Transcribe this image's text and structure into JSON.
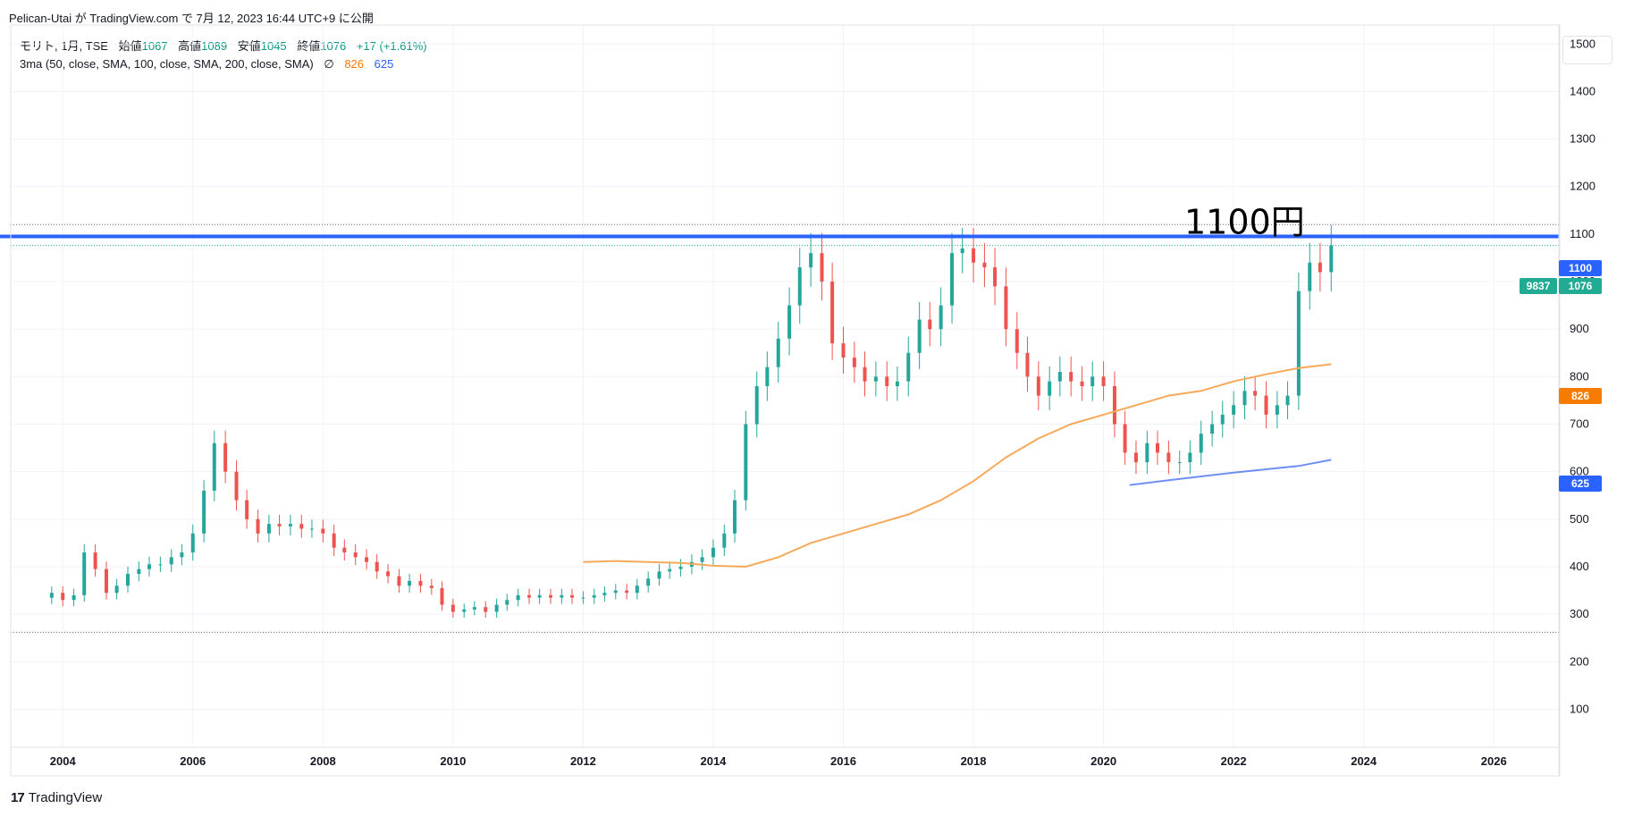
{
  "header": {
    "publish_text": "Pelican-Utai が TradingView.com で 7月 12, 2023 16:44 UTC+9 に公開"
  },
  "legend": {
    "symbol": "モリト, 1月, TSE",
    "open_label": "始値",
    "open_value": "1067",
    "high_label": "高値",
    "high_value": "1089",
    "low_label": "安値",
    "low_value": "1045",
    "close_label": "終値",
    "close_value": "1076",
    "change": "+17 (+1.61%)",
    "indicator": "3ma (50, close, SMA, 100, close, SMA, 200, close, SMA)",
    "indicator_icon": "∅",
    "ma1_value": "826",
    "ma2_value": "625"
  },
  "footer": {
    "logo_icon": "tradingview-logo-icon",
    "logo_text": "TradingView"
  },
  "colors": {
    "up": "#26a69a",
    "down": "#ef5350",
    "ma_orange": "#f7a95a",
    "ma_blue": "#6f8ff5",
    "hline": "#2962ff",
    "badge_orange": "#f57c00",
    "badge_teal": "#22ab94"
  },
  "chart_data": {
    "type": "candlestick",
    "title": "",
    "xlabel": "",
    "ylabel": "",
    "x_ticks": [
      "2004",
      "2006",
      "2008",
      "2010",
      "2012",
      "2014",
      "2016",
      "2018",
      "2020",
      "2022",
      "2024",
      "2026"
    ],
    "y_ticks": [
      "100",
      "200",
      "300",
      "400",
      "500",
      "600",
      "700",
      "800",
      "900",
      "1000",
      "1100",
      "1200",
      "1300",
      "1400",
      "1500"
    ],
    "xlim": [
      2003.2,
      2027.0
    ],
    "ylim": [
      20,
      1540
    ],
    "grid": true,
    "price_series": {
      "name": "モリト",
      "points": [
        [
          2003.83,
          345
        ],
        [
          2004.0,
          330
        ],
        [
          2004.17,
          340
        ],
        [
          2004.33,
          430
        ],
        [
          2004.5,
          395
        ],
        [
          2004.67,
          345
        ],
        [
          2004.83,
          360
        ],
        [
          2005.0,
          385
        ],
        [
          2005.17,
          395
        ],
        [
          2005.33,
          405
        ],
        [
          2005.5,
          405
        ],
        [
          2005.67,
          420
        ],
        [
          2005.83,
          430
        ],
        [
          2006.0,
          470
        ],
        [
          2006.17,
          560
        ],
        [
          2006.33,
          660
        ],
        [
          2006.5,
          600
        ],
        [
          2006.67,
          540
        ],
        [
          2006.83,
          500
        ],
        [
          2007.0,
          470
        ],
        [
          2007.17,
          490
        ],
        [
          2007.33,
          485
        ],
        [
          2007.5,
          490
        ],
        [
          2007.67,
          480
        ],
        [
          2007.83,
          480
        ],
        [
          2008.0,
          470
        ],
        [
          2008.17,
          440
        ],
        [
          2008.33,
          430
        ],
        [
          2008.5,
          420
        ],
        [
          2008.67,
          410
        ],
        [
          2008.83,
          390
        ],
        [
          2009.0,
          380
        ],
        [
          2009.17,
          360
        ],
        [
          2009.33,
          370
        ],
        [
          2009.5,
          360
        ],
        [
          2009.67,
          355
        ],
        [
          2009.83,
          320
        ],
        [
          2010.0,
          305
        ],
        [
          2010.17,
          310
        ],
        [
          2010.33,
          315
        ],
        [
          2010.5,
          305
        ],
        [
          2010.67,
          320
        ],
        [
          2010.83,
          330
        ],
        [
          2011.0,
          340
        ],
        [
          2011.17,
          335
        ],
        [
          2011.33,
          340
        ],
        [
          2011.5,
          335
        ],
        [
          2011.67,
          340
        ],
        [
          2011.83,
          335
        ],
        [
          2012.0,
          335
        ],
        [
          2012.17,
          340
        ],
        [
          2012.33,
          345
        ],
        [
          2012.5,
          350
        ],
        [
          2012.67,
          345
        ],
        [
          2012.83,
          360
        ],
        [
          2013.0,
          375
        ],
        [
          2013.17,
          390
        ],
        [
          2013.33,
          395
        ],
        [
          2013.5,
          400
        ],
        [
          2013.67,
          410
        ],
        [
          2013.83,
          420
        ],
        [
          2014.0,
          440
        ],
        [
          2014.17,
          470
        ],
        [
          2014.33,
          540
        ],
        [
          2014.5,
          700
        ],
        [
          2014.67,
          780
        ],
        [
          2014.83,
          820
        ],
        [
          2015.0,
          880
        ],
        [
          2015.17,
          950
        ],
        [
          2015.33,
          1030
        ],
        [
          2015.5,
          1060
        ],
        [
          2015.67,
          1000
        ],
        [
          2015.83,
          870
        ],
        [
          2016.0,
          840
        ],
        [
          2016.17,
          820
        ],
        [
          2016.33,
          790
        ],
        [
          2016.5,
          800
        ],
        [
          2016.67,
          780
        ],
        [
          2016.83,
          790
        ],
        [
          2017.0,
          850
        ],
        [
          2017.17,
          920
        ],
        [
          2017.33,
          900
        ],
        [
          2017.5,
          950
        ],
        [
          2017.67,
          1060
        ],
        [
          2017.83,
          1070
        ],
        [
          2018.0,
          1040
        ],
        [
          2018.17,
          1030
        ],
        [
          2018.33,
          990
        ],
        [
          2018.5,
          900
        ],
        [
          2018.67,
          850
        ],
        [
          2018.83,
          800
        ],
        [
          2019.0,
          760
        ],
        [
          2019.17,
          790
        ],
        [
          2019.33,
          810
        ],
        [
          2019.5,
          790
        ],
        [
          2019.67,
          780
        ],
        [
          2019.83,
          800
        ],
        [
          2020.0,
          780
        ],
        [
          2020.17,
          700
        ],
        [
          2020.33,
          640
        ],
        [
          2020.5,
          620
        ],
        [
          2020.67,
          660
        ],
        [
          2020.83,
          640
        ],
        [
          2021.0,
          620
        ],
        [
          2021.17,
          620
        ],
        [
          2021.33,
          640
        ],
        [
          2021.5,
          680
        ],
        [
          2021.67,
          700
        ],
        [
          2021.83,
          720
        ],
        [
          2022.0,
          740
        ],
        [
          2022.17,
          770
        ],
        [
          2022.33,
          760
        ],
        [
          2022.5,
          720
        ],
        [
          2022.67,
          740
        ],
        [
          2022.83,
          760
        ],
        [
          2023.0,
          980
        ],
        [
          2023.17,
          1040
        ],
        [
          2023.33,
          1020
        ],
        [
          2023.5,
          1076
        ]
      ]
    },
    "ma_series": [
      {
        "name": "SMA 100",
        "color": "#f7a95a",
        "points": [
          [
            2012.0,
            410
          ],
          [
            2012.5,
            412
          ],
          [
            2013.0,
            410
          ],
          [
            2013.5,
            408
          ],
          [
            2014.0,
            402
          ],
          [
            2014.5,
            400
          ],
          [
            2015.0,
            420
          ],
          [
            2015.5,
            450
          ],
          [
            2016.0,
            470
          ],
          [
            2016.5,
            490
          ],
          [
            2017.0,
            510
          ],
          [
            2017.5,
            540
          ],
          [
            2018.0,
            580
          ],
          [
            2018.5,
            630
          ],
          [
            2019.0,
            670
          ],
          [
            2019.5,
            700
          ],
          [
            2020.0,
            720
          ],
          [
            2020.5,
            740
          ],
          [
            2021.0,
            760
          ],
          [
            2021.5,
            770
          ],
          [
            2022.0,
            790
          ],
          [
            2022.5,
            805
          ],
          [
            2023.0,
            818
          ],
          [
            2023.5,
            826
          ]
        ]
      },
      {
        "name": "SMA 200",
        "color": "#6f8ff5",
        "points": [
          [
            2020.4,
            572
          ],
          [
            2021.0,
            582
          ],
          [
            2021.5,
            590
          ],
          [
            2022.0,
            598
          ],
          [
            2022.5,
            605
          ],
          [
            2023.0,
            612
          ],
          [
            2023.5,
            625
          ]
        ]
      }
    ],
    "annotations": [
      {
        "type": "hline",
        "y": 1095,
        "x_start": 2002.2,
        "label": "1100円"
      }
    ],
    "price_badges": [
      {
        "value": "1100",
        "color": "#2962ff"
      },
      {
        "value": "1076",
        "color": "#22ab94",
        "extra": "9837"
      },
      {
        "value": "826",
        "color": "#f57c00"
      },
      {
        "value": "625",
        "color": "#2962ff"
      }
    ]
  }
}
